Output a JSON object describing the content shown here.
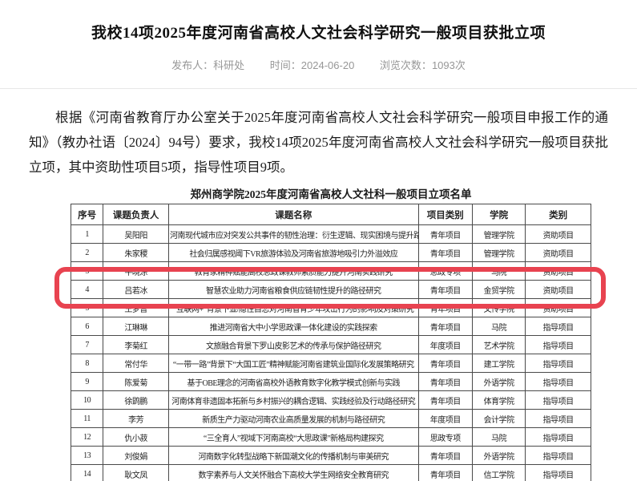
{
  "page": {
    "title": "我校14项2025年度河南省高校人文社会科学研究一般项目获批立项",
    "meta": {
      "publisher_label": "发布人：",
      "publisher": "科研处",
      "time_label": "时间：",
      "time": "2024-06-20",
      "views_label": "浏览次数：",
      "views": "1093次"
    },
    "paragraph": "根据《河南省教育厅办公室关于2025年度河南省高校人文社会科学研究一般项目申报工作的通知》（教办社语〔2024〕94号）要求，我校14项2025年度河南省高校人文社会科学研究一般项目获批立项，其中资助性项目5项，指导性项目9项。"
  },
  "table": {
    "title": "郑州商学院2025年度河南省高校人文社科一般项目立项名单",
    "headers": [
      "序号",
      "课题负责人",
      "课题名称",
      "项目类别",
      "学院",
      "类别"
    ],
    "rows": [
      {
        "seq": "1",
        "leader": "吴阳阳",
        "title": "河南现代城市应对突发公共事件的韧性治理：衍生逻辑、现实困境与提升路径",
        "category": "青年项目",
        "college": "管理学院",
        "type": "资助项目"
      },
      {
        "seq": "2",
        "leader": "朱家稷",
        "title": "社会归属感视阈下VR旅游体验及河南省旅游地吸引力外溢效应",
        "category": "青年项目",
        "college": "管理学院",
        "type": "资助项目"
      },
      {
        "seq": "3",
        "leader": "牛晓涂",
        "title": "教育家精神赋能高校思政课教师素质能力提升河南实践研究",
        "category": "思政专项",
        "college": "马院",
        "type": "资助项目"
      },
      {
        "seq": "4",
        "leader": "吕若冰",
        "title": "智慧农业助力河南省粮食供应链韧性提升的路径研究",
        "category": "青年项目",
        "college": "金贸学院",
        "type": "资助项目"
      },
      {
        "seq": "5",
        "leader": "王梦普",
        "title": "“互联网+”背景下显/隐性自恋对河南省青少年攻击行为的影响及对策研究",
        "category": "青年项目",
        "college": "文传学院",
        "type": "资助项目"
      },
      {
        "seq": "6",
        "leader": "江琳琳",
        "title": "推进河南省大中小学思政课一体化建设的实践探索",
        "category": "青年项目",
        "college": "马院",
        "type": "指导项目"
      },
      {
        "seq": "7",
        "leader": "李菊红",
        "title": "文旅融合背景下罗山皮影艺术的传承与保护路径研究",
        "category": "年度项目",
        "college": "艺术学院",
        "type": "指导项目"
      },
      {
        "seq": "8",
        "leader": "常付华",
        "title": "“一带一路”背景下“大国工匠”精神赋能河南省建筑业国际化发展策略研究",
        "category": "青年项目",
        "college": "建工学院",
        "type": "指导项目"
      },
      {
        "seq": "9",
        "leader": "陈爱菊",
        "title": "基于OBE理念的河南省高校外语教育数字化教学模式创新与实践",
        "category": "青年项目",
        "college": "外语学院",
        "type": "指导项目"
      },
      {
        "seq": "10",
        "leader": "徐鹍鹏",
        "title": "河南体育非遗固本拓新与乡村振兴的耦合逻辑、实践经验及行动路径研究",
        "category": "青年项目",
        "college": "体育学院",
        "type": "指导项目"
      },
      {
        "seq": "11",
        "leader": "李芳",
        "title": "新质生产力驱动河南农业高质量发展的机制与路径研究",
        "category": "年度项目",
        "college": "会计学院",
        "type": "指导项目"
      },
      {
        "seq": "12",
        "leader": "仇小菽",
        "title": "“三全育人”视域下河南高校“大思政课”新格局构建探究",
        "category": "思政专项",
        "college": "马院",
        "type": "指导项目"
      },
      {
        "seq": "13",
        "leader": "刘俊娟",
        "title": "河南数字化转型战略下新国潮文化的传播机制与审美研究",
        "category": "青年项目",
        "college": "外语学院",
        "type": "指导项目"
      },
      {
        "seq": "14",
        "leader": "耿文凤",
        "title": "数字素养与人文关怀融合下高校大学生网络安全教育研究",
        "category": "青年项目",
        "college": "信工学院",
        "type": "指导项目"
      }
    ],
    "highlighted_row_seq": "4",
    "highlight_color": "#e84350"
  }
}
